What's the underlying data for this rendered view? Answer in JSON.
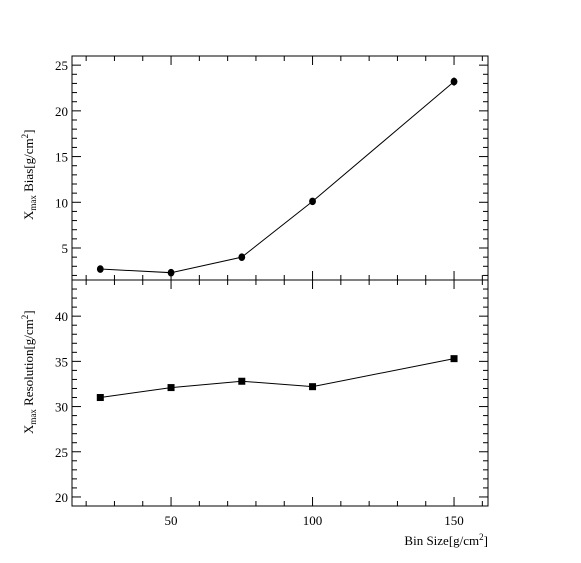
{
  "chart_data": [
    {
      "type": "line",
      "title": "",
      "xlabel": "",
      "ylabel": "X",
      "ylabel_sub": "max",
      "ylabel_rest": " Bias[g/cm",
      "ylabel_sup": "2",
      "ylabel_close": "]",
      "xlim": [
        15,
        162
      ],
      "ylim": [
        1.5,
        26
      ],
      "y_ticks": [
        5,
        10,
        15,
        20,
        25
      ],
      "grid": false,
      "marker": "circle",
      "series": [
        {
          "x": [
            25,
            50,
            75,
            100,
            150
          ],
          "y": [
            2.7,
            2.3,
            4.0,
            10.1,
            23.2
          ],
          "yerr": [
            0.3,
            0.3,
            0.3,
            0.35,
            0.45
          ]
        }
      ]
    },
    {
      "type": "line",
      "title": "",
      "xlabel": "Bin Size[g/cm",
      "xlabel_sup": "2",
      "xlabel_close": "]",
      "ylabel": "X",
      "ylabel_sub": "max",
      "ylabel_rest": " Resolution[g/cm",
      "ylabel_sup": "2",
      "ylabel_close": "]",
      "xlim": [
        15,
        162
      ],
      "ylim": [
        19,
        44
      ],
      "x_ticks": [
        50,
        100,
        150
      ],
      "y_ticks": [
        20,
        25,
        30,
        35,
        40
      ],
      "grid": false,
      "marker": "square",
      "series": [
        {
          "x": [
            25,
            50,
            75,
            100,
            150
          ],
          "y": [
            31.0,
            32.1,
            32.8,
            32.2,
            35.3
          ]
        }
      ]
    }
  ]
}
